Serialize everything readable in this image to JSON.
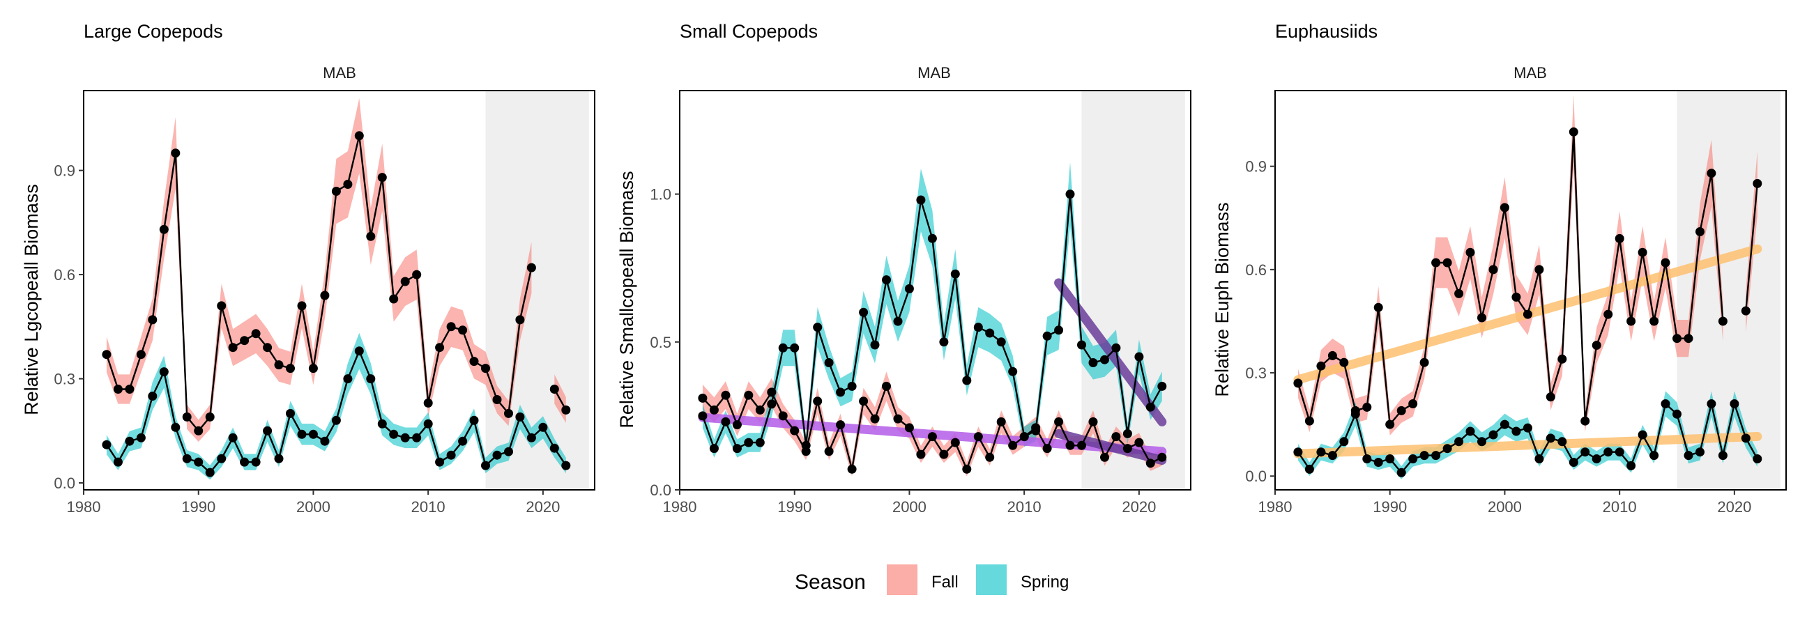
{
  "legend": {
    "title": "Season",
    "entries": [
      {
        "label": "Fall",
        "color": "#F8766D"
      },
      {
        "label": "Spring",
        "color": "#00BFC4"
      }
    ]
  },
  "chart_data": [
    {
      "type": "line",
      "title": "Large Copepods",
      "facet_label": "MAB",
      "xlabel": "",
      "ylabel": "Relative Lgcopeall Biomass",
      "xlim": [
        1980,
        2024.5
      ],
      "ylim": [
        -0.02,
        1.13
      ],
      "xticks": [
        1980,
        1990,
        2000,
        2010,
        2020
      ],
      "xtick_labels": [
        "1980",
        "1990",
        "2000",
        "2010",
        "2020"
      ],
      "yticks": [
        0,
        0.3,
        0.6,
        0.9
      ],
      "ytick_labels": [
        "0.0",
        "0.3",
        "0.6",
        "0.9"
      ],
      "highlight_range": [
        2015,
        2024
      ],
      "series": [
        {
          "name": "Fall",
          "x": [
            1982,
            1983,
            1984,
            1985,
            1986,
            1987,
            1988,
            1989,
            1990,
            1991,
            1992,
            1993,
            1994,
            1995,
            1996,
            1997,
            1998,
            1999,
            2000,
            2001,
            2002,
            2003,
            2004,
            2005,
            2006,
            2007,
            2008,
            2009,
            2010,
            2011,
            2012,
            2013,
            2014,
            2015,
            2016,
            2017,
            2018,
            2019,
            2021,
            2022
          ],
          "y": [
            0.37,
            0.27,
            0.27,
            0.37,
            0.47,
            0.73,
            0.95,
            0.19,
            0.15,
            0.19,
            0.51,
            0.39,
            0.41,
            0.43,
            0.39,
            0.34,
            0.33,
            0.51,
            0.33,
            0.54,
            0.84,
            0.86,
            1.0,
            0.71,
            0.88,
            0.53,
            0.58,
            0.6,
            0.23,
            0.39,
            0.45,
            0.44,
            0.35,
            0.33,
            0.24,
            0.2,
            0.47,
            0.62,
            0.27,
            0.21
          ]
        },
        {
          "name": "Spring",
          "x": [
            1982,
            1983,
            1984,
            1985,
            1986,
            1987,
            1988,
            1989,
            1990,
            1991,
            1992,
            1993,
            1994,
            1995,
            1996,
            1997,
            1998,
            1999,
            2000,
            2001,
            2002,
            2003,
            2004,
            2005,
            2006,
            2007,
            2008,
            2009,
            2010,
            2011,
            2012,
            2013,
            2014,
            2015,
            2016,
            2017,
            2018,
            2019,
            2020,
            2021,
            2022
          ],
          "y": [
            0.11,
            0.06,
            0.12,
            0.13,
            0.25,
            0.32,
            0.16,
            0.07,
            0.06,
            0.03,
            0.07,
            0.13,
            0.06,
            0.06,
            0.15,
            0.07,
            0.2,
            0.14,
            0.14,
            0.12,
            0.18,
            0.3,
            0.38,
            0.3,
            0.17,
            0.14,
            0.13,
            0.13,
            0.17,
            0.06,
            0.08,
            0.12,
            0.18,
            0.05,
            0.08,
            0.09,
            0.19,
            0.13,
            0.16,
            0.1,
            0.05
          ]
        }
      ],
      "trend_lines": []
    },
    {
      "type": "line",
      "title": "Small Copepods",
      "facet_label": "MAB",
      "xlabel": "",
      "ylabel": "Relative Smallcopeall Biomass",
      "xlim": [
        1980,
        2024.5
      ],
      "ylim": [
        0,
        1.35
      ],
      "xticks": [
        1980,
        1990,
        2000,
        2010,
        2020
      ],
      "xtick_labels": [
        "1980",
        "1990",
        "2000",
        "2010",
        "2020"
      ],
      "yticks": [
        0,
        0.5,
        1.0
      ],
      "ytick_labels": [
        "0.0",
        "0.5",
        "1.0"
      ],
      "highlight_range": [
        2015,
        2024
      ],
      "series": [
        {
          "name": "Fall",
          "x": [
            1982,
            1983,
            1984,
            1985,
            1986,
            1987,
            1988,
            1989,
            1990,
            1991,
            1992,
            1993,
            1994,
            1995,
            1996,
            1997,
            1998,
            1999,
            2000,
            2001,
            2002,
            2003,
            2004,
            2005,
            2006,
            2007,
            2008,
            2009,
            2010,
            2011,
            2012,
            2013,
            2014,
            2015,
            2016,
            2017,
            2018,
            2019,
            2020,
            2021,
            2022
          ],
          "y": [
            0.31,
            0.27,
            0.32,
            0.22,
            0.32,
            0.27,
            0.33,
            0.25,
            0.2,
            0.13,
            0.3,
            0.13,
            0.22,
            0.07,
            0.3,
            0.24,
            0.35,
            0.24,
            0.21,
            0.12,
            0.18,
            0.12,
            0.16,
            0.07,
            0.18,
            0.11,
            0.23,
            0.15,
            0.18,
            0.21,
            0.14,
            0.23,
            0.15,
            0.15,
            0.23,
            0.11,
            0.18,
            0.14,
            0.16,
            0.09,
            0.11
          ]
        },
        {
          "name": "Spring",
          "x": [
            1982,
            1983,
            1984,
            1985,
            1986,
            1987,
            1988,
            1989,
            1990,
            1991,
            1992,
            1993,
            1994,
            1995,
            1996,
            1997,
            1998,
            1999,
            2000,
            2001,
            2002,
            2003,
            2004,
            2005,
            2006,
            2007,
            2008,
            2009,
            2010,
            2011,
            2012,
            2013,
            2014,
            2015,
            2016,
            2017,
            2018,
            2019,
            2020,
            2021,
            2022
          ],
          "y": [
            0.25,
            0.14,
            0.23,
            0.14,
            0.16,
            0.16,
            0.29,
            0.48,
            0.48,
            0.15,
            0.55,
            0.43,
            0.33,
            0.35,
            0.6,
            0.49,
            0.71,
            0.57,
            0.68,
            0.98,
            0.85,
            0.5,
            0.73,
            0.37,
            0.55,
            0.53,
            0.5,
            0.4,
            0.18,
            0.2,
            0.52,
            0.54,
            1.0,
            0.49,
            0.43,
            0.44,
            0.48,
            0.19,
            0.45,
            0.28,
            0.35
          ]
        }
      ],
      "trend_lines": [
        {
          "x": [
            1982,
            2022
          ],
          "y": [
            0.245,
            0.13
          ],
          "color": "#B35CE8"
        },
        {
          "x": [
            2013,
            2022
          ],
          "y": [
            0.7,
            0.23
          ],
          "color": "#6A3D9A"
        },
        {
          "x": [
            2013,
            2022
          ],
          "y": [
            0.19,
            0.1
          ],
          "color": "#6A3D9A"
        }
      ]
    },
    {
      "type": "line",
      "title": "Euphausiids",
      "facet_label": "MAB",
      "xlabel": "",
      "ylabel": "Relative Euph Biomass",
      "xlim": [
        1980,
        2024.5
      ],
      "ylim": [
        -0.04,
        1.12
      ],
      "xticks": [
        1980,
        1990,
        2000,
        2010,
        2020
      ],
      "xtick_labels": [
        "1980",
        "1990",
        "2000",
        "2010",
        "2020"
      ],
      "yticks": [
        0,
        0.3,
        0.6,
        0.9
      ],
      "ytick_labels": [
        "0.0",
        "0.3",
        "0.6",
        "0.9"
      ],
      "highlight_range": [
        2015,
        2024
      ],
      "series": [
        {
          "name": "Fall",
          "x": [
            1982,
            1983,
            1984,
            1985,
            1986,
            1987,
            1988,
            1989,
            1990,
            1991,
            1992,
            1993,
            1994,
            1995,
            1996,
            1997,
            1998,
            1999,
            2000,
            2001,
            2002,
            2003,
            2004,
            2005,
            2006,
            2007,
            2008,
            2009,
            2010,
            2011,
            2012,
            2013,
            2014,
            2015,
            2016,
            2017,
            2018,
            2019,
            2021,
            2022
          ],
          "y": [
            0.27,
            0.16,
            0.32,
            0.35,
            0.33,
            0.19,
            0.2,
            0.49,
            0.15,
            0.19,
            0.21,
            0.33,
            0.62,
            0.62,
            0.53,
            0.65,
            0.46,
            0.6,
            0.78,
            0.52,
            0.47,
            0.6,
            0.23,
            0.34,
            1.0,
            0.16,
            0.38,
            0.47,
            0.69,
            0.45,
            0.65,
            0.45,
            0.62,
            0.4,
            0.4,
            0.71,
            0.88,
            0.45,
            0.48,
            0.85
          ]
        },
        {
          "name": "Spring",
          "x": [
            1982,
            1983,
            1984,
            1985,
            1986,
            1987,
            1988,
            1989,
            1990,
            1991,
            1992,
            1993,
            1994,
            1995,
            1996,
            1997,
            1998,
            1999,
            2000,
            2001,
            2002,
            2003,
            2004,
            2005,
            2006,
            2007,
            2008,
            2009,
            2010,
            2011,
            2012,
            2013,
            2014,
            2015,
            2016,
            2017,
            2018,
            2019,
            2020,
            2021,
            2022
          ],
          "y": [
            0.07,
            0.02,
            0.07,
            0.06,
            0.1,
            0.18,
            0.05,
            0.04,
            0.05,
            0.01,
            0.05,
            0.06,
            0.06,
            0.08,
            0.1,
            0.13,
            0.1,
            0.12,
            0.15,
            0.13,
            0.14,
            0.05,
            0.11,
            0.1,
            0.04,
            0.07,
            0.05,
            0.07,
            0.07,
            0.03,
            0.12,
            0.06,
            0.21,
            0.18,
            0.06,
            0.07,
            0.21,
            0.06,
            0.21,
            0.11,
            0.05
          ]
        }
      ],
      "trend_lines": [
        {
          "x": [
            1982,
            2022
          ],
          "y": [
            0.28,
            0.66
          ],
          "color": "#FDBF6F"
        },
        {
          "x": [
            1982,
            2022
          ],
          "y": [
            0.065,
            0.115
          ],
          "color": "#FDBF6F"
        }
      ]
    }
  ]
}
